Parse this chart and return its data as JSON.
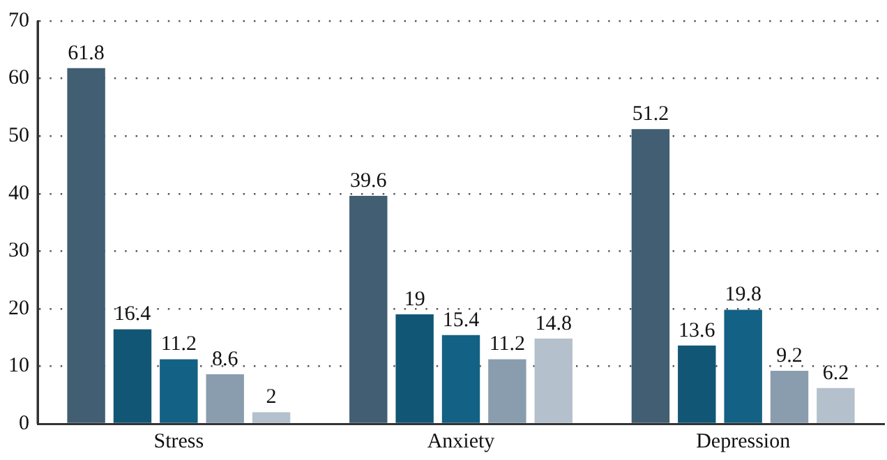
{
  "chart_data": {
    "type": "bar",
    "categories": [
      "Stress",
      "Anxiety",
      "Depression"
    ],
    "series": [
      {
        "color": "#415e73",
        "values": [
          61.8,
          39.6,
          51.2
        ]
      },
      {
        "color": "#115675",
        "values": [
          16.4,
          19,
          13.6
        ]
      },
      {
        "color": "#136184",
        "values": [
          11.2,
          15.4,
          19.8
        ]
      },
      {
        "color": "#8a9dae",
        "values": [
          8.6,
          11.2,
          9.2
        ]
      },
      {
        "color": "#b4c0cb",
        "values": [
          2,
          14.8,
          6.2
        ]
      }
    ],
    "ylim": [
      0,
      70
    ],
    "yticks": [
      0,
      10,
      20,
      30,
      40,
      50,
      60,
      70
    ],
    "grid": "y",
    "legend": false,
    "data_labels": true
  }
}
